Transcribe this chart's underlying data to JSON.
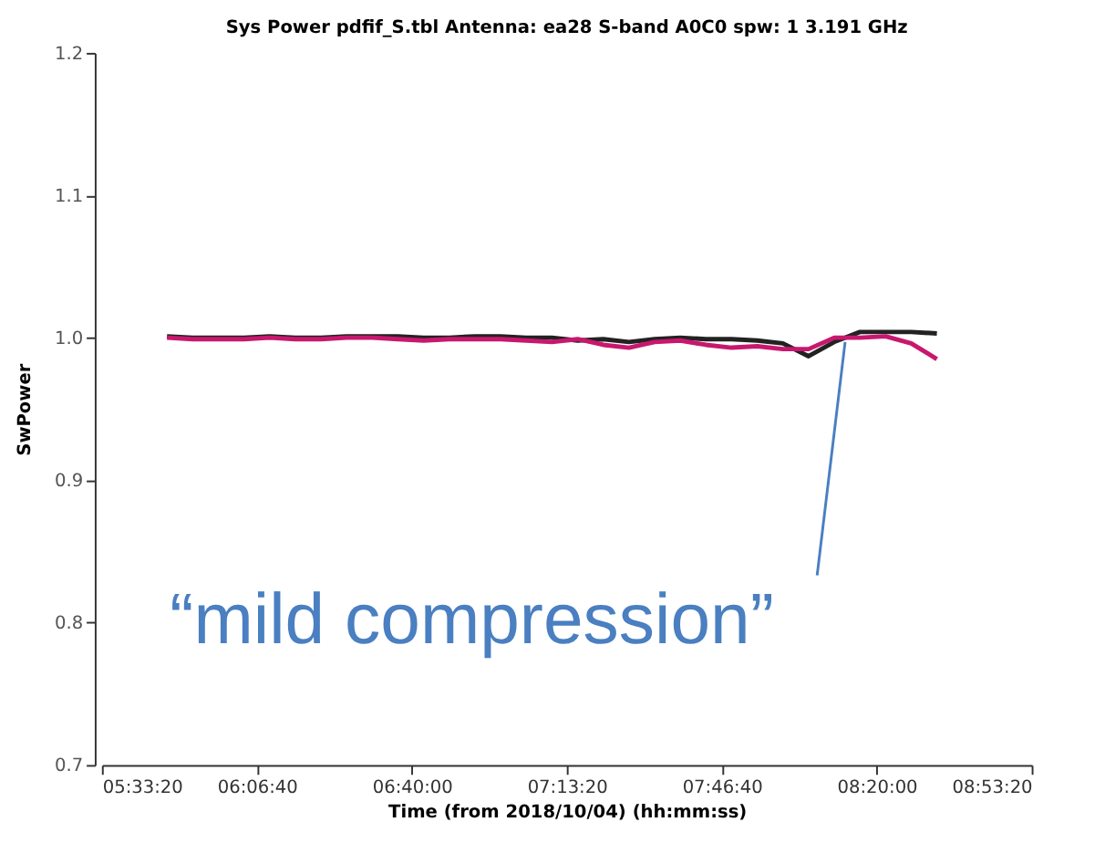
{
  "chart_data": {
    "type": "line",
    "title": "Sys Power pdfif_S.tbl  Antenna: ea28  S-band  A0C0  spw: 1   3.191 GHz",
    "xlabel": "Time (from 2018/10/04) (hh:mm:ss)",
    "ylabel": "SwPower",
    "xlim": [
      5.5556,
      8.8889
    ],
    "xticks": [
      {
        "value": 5.5556,
        "label": "05:33:20"
      },
      {
        "value": 6.1111,
        "label": "06:06:40"
      },
      {
        "value": 6.6667,
        "label": "06:40:00"
      },
      {
        "value": 7.2222,
        "label": "07:13:20"
      },
      {
        "value": 7.7778,
        "label": "07:46:40"
      },
      {
        "value": 8.3333,
        "label": "08:20:00"
      },
      {
        "value": 8.8889,
        "label": "08:53:20"
      }
    ],
    "ylim": [
      0.7,
      1.2
    ],
    "yticks": [
      0.7,
      0.8,
      0.9,
      {
        "value": 1.0,
        "label": "1.0"
      },
      1.1,
      1.2
    ],
    "grid": false,
    "marker": "none",
    "line_style": "solid",
    "x": [
      5.789,
      5.881,
      5.973,
      6.065,
      6.157,
      6.249,
      6.341,
      6.433,
      6.525,
      6.617,
      6.709,
      6.801,
      6.893,
      6.985,
      7.077,
      7.169,
      7.261,
      7.353,
      7.445,
      7.537,
      7.629,
      7.721,
      7.813,
      7.905,
      7.997,
      8.089,
      8.181,
      8.273,
      8.365,
      8.457,
      8.549
    ],
    "series": [
      {
        "color": "#222222",
        "values": [
          1.001,
          1.0,
          1.0,
          1.0,
          1.001,
          1.0,
          1.0,
          1.001,
          1.001,
          1.001,
          1.0,
          1.0,
          1.001,
          1.001,
          1.0,
          1.0,
          0.998,
          0.999,
          0.997,
          0.999,
          1.0,
          0.999,
          0.999,
          0.998,
          0.996,
          0.987,
          0.997,
          1.004,
          1.004,
          1.004,
          1.003
        ]
      },
      {
        "color": "#c8186e",
        "values": [
          1.0,
          0.999,
          0.999,
          0.999,
          1.0,
          0.999,
          0.999,
          1.0,
          1.0,
          0.999,
          0.998,
          0.999,
          0.999,
          0.999,
          0.998,
          0.997,
          0.999,
          0.995,
          0.993,
          0.997,
          0.998,
          0.995,
          0.993,
          0.994,
          0.992,
          0.992,
          1.0,
          1.0,
          1.001,
          0.996,
          0.985
        ]
      }
    ],
    "annotations": [
      {
        "text": "“mild compression”",
        "x": 8.22,
        "y": 0.997
      }
    ]
  }
}
